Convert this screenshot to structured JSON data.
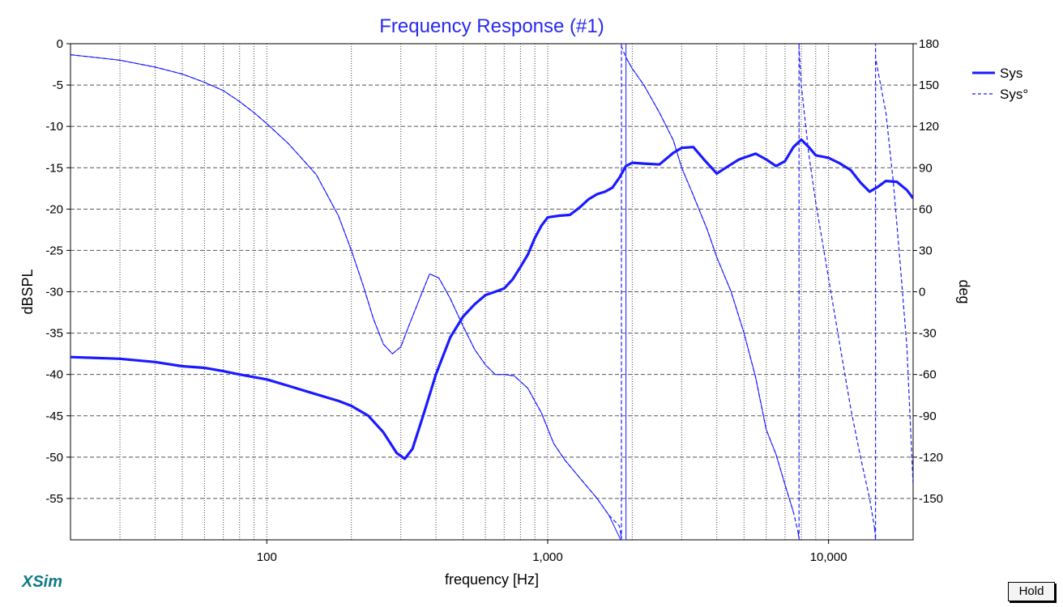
{
  "brand": "XSim",
  "hold_label": "Hold",
  "chart_data": {
    "type": "line",
    "title": "Frequency Response (#1)",
    "xlabel": "frequency [Hz]",
    "ylabel_left": "dBSPL",
    "ylabel_right": "deg",
    "xscale": "log",
    "xlim": [
      20,
      20000
    ],
    "ylim_left": [
      -60,
      0
    ],
    "ylim_right": [
      -180,
      180
    ],
    "x_tick_labels": [
      {
        "value": 100,
        "label": "100"
      },
      {
        "value": 1000,
        "label": "1,000"
      },
      {
        "value": 10000,
        "label": "10,000"
      }
    ],
    "y_left_ticks": [
      0,
      -5,
      -10,
      -15,
      -20,
      -25,
      -30,
      -35,
      -40,
      -45,
      -50,
      -55
    ],
    "y_right_ticks": [
      180,
      150,
      120,
      90,
      60,
      30,
      0,
      -30,
      -60,
      -90,
      -120,
      -150
    ],
    "grid": true,
    "legend_position": "top-right",
    "colors": {
      "series": "#1a1aff",
      "title": "#2a2af0",
      "brand": "#0f7b87"
    },
    "series": [
      {
        "name": "Sys",
        "axis": "left",
        "style": "solid-thick",
        "points": [
          [
            20,
            -37.9
          ],
          [
            30,
            -38.1
          ],
          [
            40,
            -38.5
          ],
          [
            50,
            -39.0
          ],
          [
            60,
            -39.2
          ],
          [
            70,
            -39.6
          ],
          [
            80,
            -40.0
          ],
          [
            100,
            -40.6
          ],
          [
            120,
            -41.4
          ],
          [
            150,
            -42.4
          ],
          [
            180,
            -43.2
          ],
          [
            200,
            -43.8
          ],
          [
            230,
            -45.0
          ],
          [
            260,
            -47.0
          ],
          [
            290,
            -49.5
          ],
          [
            310,
            -50.2
          ],
          [
            330,
            -49.0
          ],
          [
            360,
            -45.0
          ],
          [
            400,
            -40.0
          ],
          [
            450,
            -35.5
          ],
          [
            500,
            -33.0
          ],
          [
            550,
            -31.5
          ],
          [
            600,
            -30.4
          ],
          [
            650,
            -30.0
          ],
          [
            700,
            -29.6
          ],
          [
            750,
            -28.5
          ],
          [
            800,
            -27.0
          ],
          [
            850,
            -25.5
          ],
          [
            900,
            -23.5
          ],
          [
            950,
            -22.0
          ],
          [
            1000,
            -21.0
          ],
          [
            1100,
            -20.8
          ],
          [
            1200,
            -20.7
          ],
          [
            1300,
            -19.8
          ],
          [
            1400,
            -18.8
          ],
          [
            1500,
            -18.2
          ],
          [
            1600,
            -17.9
          ],
          [
            1700,
            -17.4
          ],
          [
            1800,
            -16.2
          ],
          [
            1900,
            -14.8
          ],
          [
            2000,
            -14.4
          ],
          [
            2200,
            -14.5
          ],
          [
            2500,
            -14.6
          ],
          [
            2800,
            -13.2
          ],
          [
            3000,
            -12.6
          ],
          [
            3300,
            -12.5
          ],
          [
            3600,
            -14.0
          ],
          [
            4000,
            -15.7
          ],
          [
            4400,
            -14.8
          ],
          [
            4800,
            -14.0
          ],
          [
            5500,
            -13.3
          ],
          [
            6000,
            -14.0
          ],
          [
            6500,
            -14.8
          ],
          [
            7000,
            -14.2
          ],
          [
            7500,
            -12.5
          ],
          [
            8000,
            -11.6
          ],
          [
            8500,
            -12.5
          ],
          [
            9000,
            -13.5
          ],
          [
            10000,
            -13.8
          ],
          [
            11000,
            -14.5
          ],
          [
            12000,
            -15.3
          ],
          [
            13000,
            -16.8
          ],
          [
            14000,
            -17.9
          ],
          [
            15000,
            -17.3
          ],
          [
            16000,
            -16.6
          ],
          [
            17500,
            -16.7
          ],
          [
            19000,
            -17.7
          ],
          [
            20000,
            -18.7
          ]
        ]
      },
      {
        "name": "Sys°",
        "axis": "right",
        "style": "dashed",
        "points": [
          [
            20,
            172
          ],
          [
            30,
            168
          ],
          [
            40,
            163
          ],
          [
            50,
            158
          ],
          [
            60,
            152
          ],
          [
            70,
            146
          ],
          [
            80,
            138
          ],
          [
            90,
            130
          ],
          [
            100,
            122
          ],
          [
            120,
            107
          ],
          [
            150,
            85
          ],
          [
            180,
            55
          ],
          [
            200,
            30
          ],
          [
            220,
            5
          ],
          [
            240,
            -20
          ],
          [
            260,
            -38
          ],
          [
            280,
            -45
          ],
          [
            300,
            -40
          ],
          [
            320,
            -25
          ],
          [
            350,
            -5
          ],
          [
            380,
            13
          ],
          [
            410,
            10
          ],
          [
            450,
            -5
          ],
          [
            500,
            -25
          ],
          [
            550,
            -42
          ],
          [
            600,
            -53
          ],
          [
            650,
            -60
          ],
          [
            700,
            -60
          ],
          [
            760,
            -61
          ],
          [
            850,
            -70
          ],
          [
            950,
            -88
          ],
          [
            1050,
            -110
          ],
          [
            1150,
            -122
          ],
          [
            1300,
            -135
          ],
          [
            1500,
            -150
          ],
          [
            1650,
            -162
          ],
          [
            1800,
            -170
          ],
          [
            1820,
            -175
          ],
          [
            1830,
            178
          ],
          [
            1900,
            170
          ],
          [
            2000,
            162
          ],
          [
            2200,
            150
          ],
          [
            2500,
            130
          ],
          [
            2800,
            110
          ],
          [
            3000,
            90
          ],
          [
            3300,
            70
          ],
          [
            3700,
            45
          ],
          [
            4000,
            25
          ],
          [
            4500,
            0
          ],
          [
            5000,
            -30
          ],
          [
            5500,
            -62
          ],
          [
            6000,
            -100
          ],
          [
            6500,
            -118
          ],
          [
            7000,
            -140
          ],
          [
            7500,
            -160
          ],
          [
            7800,
            -175
          ],
          [
            7850,
            177
          ],
          [
            8000,
            150
          ],
          [
            8500,
            100
          ],
          [
            9000,
            65
          ],
          [
            10000,
            10
          ],
          [
            11000,
            -40
          ],
          [
            12000,
            -85
          ],
          [
            13000,
            -120
          ],
          [
            14000,
            -150
          ],
          [
            14600,
            -172
          ],
          [
            14700,
            170
          ],
          [
            15000,
            160
          ],
          [
            16000,
            130
          ],
          [
            17000,
            80
          ],
          [
            18000,
            20
          ],
          [
            19000,
            -40
          ],
          [
            20000,
            -140
          ]
        ]
      },
      {
        "name": "",
        "axis": "right",
        "style": "solid-thin",
        "points": [
          [
            20,
            172
          ],
          [
            30,
            168
          ],
          [
            40,
            163
          ],
          [
            50,
            158
          ],
          [
            60,
            152
          ],
          [
            70,
            146
          ],
          [
            80,
            138
          ],
          [
            90,
            130
          ],
          [
            100,
            122
          ],
          [
            120,
            107
          ],
          [
            150,
            85
          ],
          [
            180,
            55
          ],
          [
            200,
            30
          ],
          [
            220,
            5
          ],
          [
            240,
            -20
          ],
          [
            260,
            -38
          ],
          [
            280,
            -45
          ],
          [
            300,
            -40
          ],
          [
            320,
            -25
          ],
          [
            350,
            -5
          ],
          [
            380,
            13
          ],
          [
            410,
            10
          ],
          [
            450,
            -5
          ],
          [
            500,
            -25
          ],
          [
            550,
            -42
          ],
          [
            600,
            -53
          ],
          [
            650,
            -60
          ],
          [
            700,
            -60
          ],
          [
            760,
            -61
          ],
          [
            850,
            -70
          ],
          [
            950,
            -88
          ],
          [
            1050,
            -110
          ],
          [
            1150,
            -122
          ],
          [
            1300,
            -135
          ],
          [
            1500,
            -150
          ],
          [
            1650,
            -162
          ],
          [
            1820,
            -180
          ],
          [
            1850,
            -180
          ],
          [
            1900,
            170
          ],
          [
            2000,
            162
          ],
          [
            2200,
            150
          ],
          [
            2500,
            130
          ],
          [
            2800,
            110
          ],
          [
            3000,
            90
          ],
          [
            3300,
            70
          ],
          [
            3700,
            45
          ],
          [
            4000,
            25
          ],
          [
            4500,
            0
          ],
          [
            5000,
            -30
          ],
          [
            5500,
            -62
          ],
          [
            6000,
            -100
          ],
          [
            6500,
            -118
          ],
          [
            7000,
            -140
          ],
          [
            7500,
            -160
          ]
        ]
      }
    ]
  }
}
